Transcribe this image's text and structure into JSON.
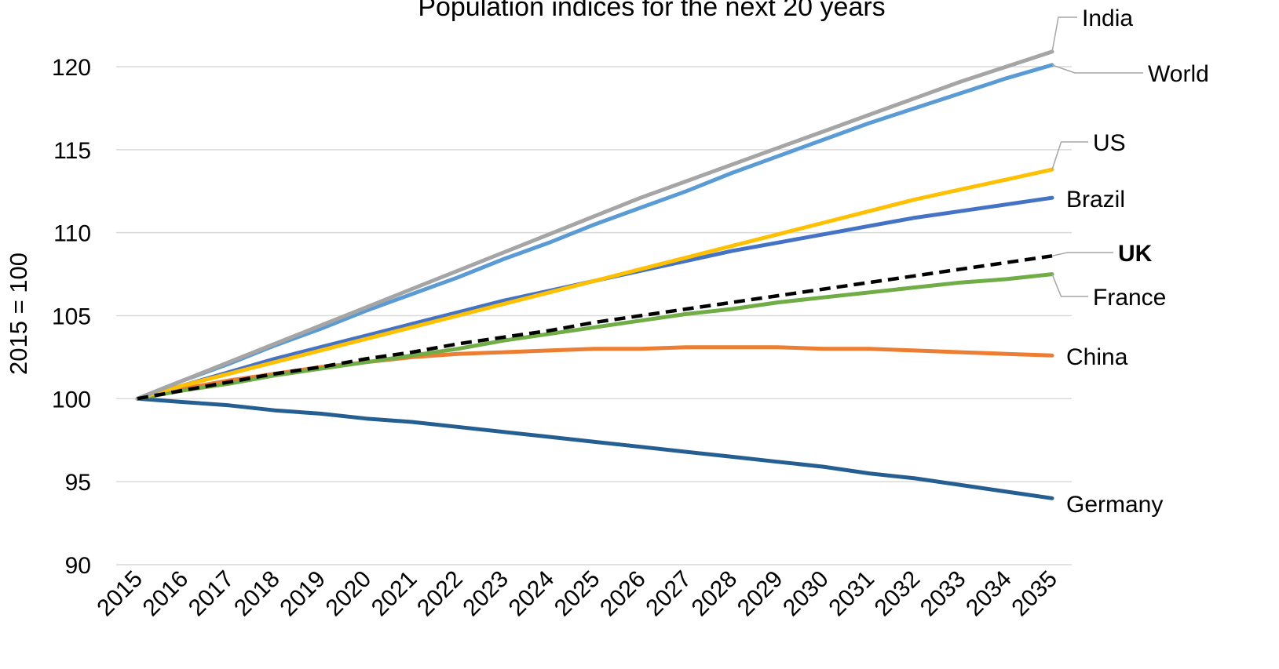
{
  "chart_data": {
    "type": "line",
    "title": "Population indices for the next 20 years",
    "ylabel": "2015 = 100",
    "xlabel": "",
    "x": [
      2015,
      2016,
      2017,
      2018,
      2019,
      2020,
      2021,
      2022,
      2023,
      2024,
      2025,
      2026,
      2027,
      2028,
      2029,
      2030,
      2031,
      2032,
      2033,
      2034,
      2035
    ],
    "ylim": [
      90,
      122
    ],
    "yticks": [
      90,
      95,
      100,
      105,
      110,
      115,
      120
    ],
    "grid": true,
    "legend": "inline labels at line ends (right)",
    "series": [
      {
        "name": "India",
        "color": "#a5a5a5",
        "dashed": false,
        "bold_label": false,
        "values": [
          100,
          101.1,
          102.2,
          103.3,
          104.4,
          105.5,
          106.6,
          107.7,
          108.8,
          109.9,
          111.0,
          112.1,
          113.1,
          114.1,
          115.1,
          116.1,
          117.1,
          118.1,
          119.1,
          120.0,
          120.9
        ]
      },
      {
        "name": "World",
        "color": "#5b9bd5",
        "dashed": false,
        "bold_label": false,
        "values": [
          100,
          101.1,
          102.1,
          103.2,
          104.2,
          105.3,
          106.3,
          107.3,
          108.4,
          109.4,
          110.5,
          111.5,
          112.5,
          113.6,
          114.6,
          115.6,
          116.6,
          117.5,
          118.4,
          119.3,
          120.1
        ]
      },
      {
        "name": "US",
        "color": "#ffc000",
        "dashed": false,
        "bold_label": false,
        "values": [
          100,
          100.8,
          101.5,
          102.2,
          102.9,
          103.6,
          104.3,
          105.0,
          105.7,
          106.4,
          107.1,
          107.8,
          108.5,
          109.2,
          109.9,
          110.6,
          111.3,
          112.0,
          112.6,
          113.2,
          113.8
        ]
      },
      {
        "name": "Brazil",
        "color": "#4472c4",
        "dashed": false,
        "bold_label": false,
        "values": [
          100,
          100.8,
          101.6,
          102.4,
          103.1,
          103.8,
          104.5,
          105.2,
          105.9,
          106.5,
          107.1,
          107.7,
          108.3,
          108.9,
          109.4,
          109.9,
          110.4,
          110.9,
          111.3,
          111.7,
          112.1
        ]
      },
      {
        "name": "UK",
        "color": "#000000",
        "dashed": true,
        "bold_label": true,
        "values": [
          100,
          100.5,
          101.0,
          101.5,
          101.9,
          102.4,
          102.8,
          103.3,
          103.7,
          104.1,
          104.6,
          105.0,
          105.4,
          105.8,
          106.2,
          106.6,
          107.0,
          107.4,
          107.8,
          108.2,
          108.6
        ]
      },
      {
        "name": "France",
        "color": "#70ad47",
        "dashed": false,
        "bold_label": false,
        "values": [
          100,
          100.5,
          100.9,
          101.4,
          101.8,
          102.2,
          102.6,
          103.0,
          103.5,
          103.9,
          104.3,
          104.7,
          105.1,
          105.4,
          105.8,
          106.1,
          106.4,
          106.7,
          107.0,
          107.2,
          107.5
        ]
      },
      {
        "name": "China",
        "color": "#ed7d31",
        "dashed": false,
        "bold_label": false,
        "values": [
          100,
          100.6,
          101.1,
          101.5,
          101.9,
          102.2,
          102.5,
          102.7,
          102.8,
          102.9,
          103.0,
          103.0,
          103.1,
          103.1,
          103.1,
          103.0,
          103.0,
          102.9,
          102.8,
          102.7,
          102.6
        ]
      },
      {
        "name": "Germany",
        "color": "#255e91",
        "dashed": false,
        "bold_label": false,
        "values": [
          100,
          99.8,
          99.6,
          99.3,
          99.1,
          98.8,
          98.6,
          98.3,
          98.0,
          97.7,
          97.4,
          97.1,
          96.8,
          96.5,
          96.2,
          95.9,
          95.5,
          95.2,
          94.8,
          94.4,
          94.0
        ]
      }
    ]
  }
}
